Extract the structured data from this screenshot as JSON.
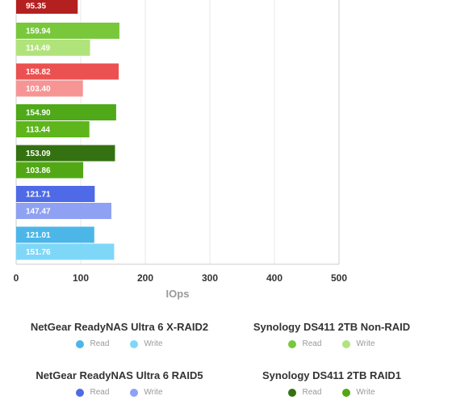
{
  "chart_data": {
    "type": "bar",
    "orientation": "horizontal",
    "xlabel": "IOps",
    "xlim": [
      0,
      500
    ],
    "x_ticks": [
      "0",
      "100",
      "200",
      "300",
      "400",
      "500"
    ],
    "grid": true,
    "bars": [
      {
        "value": 95.35,
        "color": "#b41f1f"
      },
      {
        "value": 159.94,
        "color": "#79c83c"
      },
      {
        "value": 114.49,
        "color": "#b1e37b"
      },
      {
        "value": 158.82,
        "color": "#ec5151"
      },
      {
        "value": 103.4,
        "color": "#f79595"
      },
      {
        "value": 154.9,
        "color": "#4fa918"
      },
      {
        "value": 113.44,
        "color": "#5eb51c"
      },
      {
        "value": 153.09,
        "color": "#347110"
      },
      {
        "value": 103.86,
        "color": "#51a814"
      },
      {
        "value": 121.71,
        "color": "#4f6ae6"
      },
      {
        "value": 147.47,
        "color": "#8ea1f2"
      },
      {
        "value": 121.01,
        "color": "#4cb6e8"
      },
      {
        "value": 151.76,
        "color": "#7fd7f8"
      }
    ]
  },
  "legend": {
    "groups": [
      {
        "title": "NetGear ReadyNAS Ultra 6 X-RAID2",
        "items": [
          {
            "label": "Read",
            "color": "#4cb6e8"
          },
          {
            "label": "Write",
            "color": "#7fd7f8"
          }
        ]
      },
      {
        "title": "Synology DS411 2TB Non-RAID",
        "items": [
          {
            "label": "Read",
            "color": "#79c83c"
          },
          {
            "label": "Write",
            "color": "#b1e37b"
          }
        ]
      },
      {
        "title": "NetGear ReadyNAS Ultra 6 RAID5",
        "items": [
          {
            "label": "Read",
            "color": "#4f6ae6"
          },
          {
            "label": "Write",
            "color": "#8ea1f2"
          }
        ]
      },
      {
        "title": "Synology DS411 2TB RAID1",
        "items": [
          {
            "label": "Read",
            "color": "#347110"
          },
          {
            "label": "Write",
            "color": "#51a814"
          }
        ]
      }
    ]
  }
}
